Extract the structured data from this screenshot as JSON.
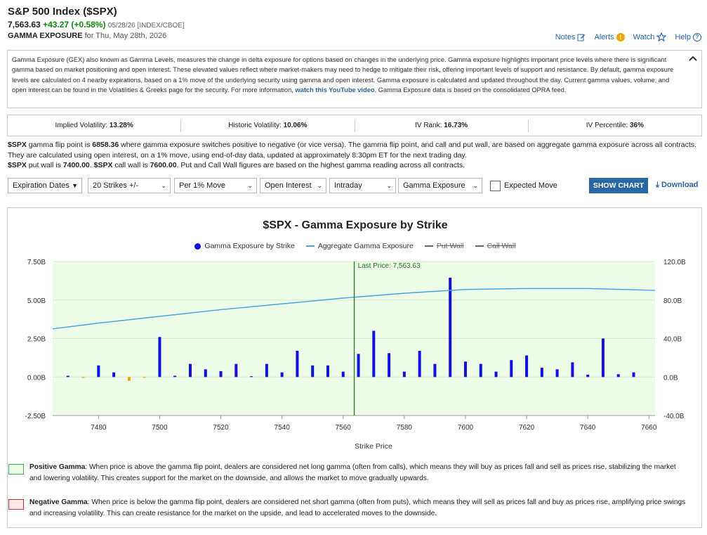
{
  "header": {
    "title": "S&P 500 Index ($SPX)",
    "price": "7,563.63",
    "change": "+43.27 (+0.58%)",
    "meta": "05/28/26 [INDEX/CBOE]",
    "sub_bold": "GAMMA EXPOSURE",
    "sub_rest": " for Thu, May 28th, 2026"
  },
  "toplinks": {
    "notes": "Notes",
    "alerts": "Alerts",
    "alerts_badge": "!",
    "watch": "Watch",
    "help": "Help",
    "help_icon": "?"
  },
  "icons": {
    "notes": "pencil-icon",
    "watch": "star-icon",
    "help": "question-icon",
    "collapse": "chevron-up-icon",
    "download": "download-icon"
  },
  "description": {
    "text1": "Gamma Exposure (GEX) also known as Gamma Levels, measures the change in delta exposure for options based on changes in the underlying price. Gamma exposure highlights important price levels where there is significant gamma based on market positioning and open interest. These elevated values reflect where market-makers may need to hedge to mitigate their risk, offering important levels of support and resistance. By default, gamma exposure levels are calculated on 4 nearby expirations, based on a 1% move of the underlying security using gamma and open interest. Gamma exposure is calculated and updated throughout the day. Current gamma values, volume, and open interest can be found in the Volatilities & Greeks page for the security. For more information, ",
    "link": "watch this YouTube video",
    "text2": ". Gamma Exposure data is based on the consolidated OPRA feed."
  },
  "stats": [
    {
      "label": "Implied Volatility: ",
      "value": "13.28%"
    },
    {
      "label": "Historic Volatility: ",
      "value": "10.06%"
    },
    {
      "label": "IV Rank: ",
      "value": "16.73%"
    },
    {
      "label": "IV Percentile: ",
      "value": "36%"
    }
  ],
  "info": {
    "l1a": "$SPX",
    "l1b": " gamma flip point is ",
    "l1c": "6858.36",
    "l1d": " where gamma exposure switches positive to negative (or vice versa). The gamma flip point, and call and put wall, are based on aggregate gamma exposure across all contracts. They are calculated using open interest, on a 1% move, using end-of-day data, updated at approximately 8:30pm ET for the next trading day.",
    "l2a": "$SPX",
    "l2b": " put wall is ",
    "l2c": "7400.00",
    "l2d": ". ",
    "l2e": "$SPX",
    "l2f": " call wall is ",
    "l2g": "7600.00",
    "l2h": ". Put and Call Wall figures are based on the highest gamma reading across all contracts."
  },
  "controls": {
    "expiration": "Expiration Dates",
    "strikes": "20 Strikes +/-",
    "move": "Per 1% Move",
    "oi": "Open Interest",
    "period": "Intraday",
    "metric": "Gamma Exposure",
    "expected_move": "Expected Move",
    "show_chart": "SHOW CHART",
    "download": "Download"
  },
  "chart_data": {
    "type": "bar",
    "title": "$SPX - Gamma Exposure by Strike",
    "xlabel": "Strike Price",
    "legend": [
      "Gamma Exposure by Strike",
      "Aggregate Gamma Exposure",
      "Put Wall",
      "Call Wall"
    ],
    "last_price_label": "Last Price: 7,563.63",
    "last_price": 7563.63,
    "xlim": [
      7465,
      7662
    ],
    "ylim_left": [
      -2.5,
      7.5
    ],
    "ylim_right": [
      -40,
      120
    ],
    "x_ticks": [
      7480,
      7500,
      7520,
      7540,
      7560,
      7580,
      7600,
      7620,
      7640,
      7660
    ],
    "y_left_ticks": [
      "-2.50B",
      "0.00B",
      "2.50B",
      "5.00B",
      "7.50B"
    ],
    "y_right_ticks": [
      "-40.0B",
      "0.0B",
      "40.0B",
      "80.0B",
      "120.0B"
    ],
    "bars": {
      "strikes": [
        7470,
        7475,
        7480,
        7485,
        7490,
        7495,
        7500,
        7505,
        7510,
        7515,
        7520,
        7525,
        7530,
        7535,
        7540,
        7545,
        7550,
        7555,
        7560,
        7565,
        7570,
        7575,
        7580,
        7585,
        7590,
        7595,
        7600,
        7605,
        7610,
        7615,
        7620,
        7625,
        7630,
        7635,
        7640,
        7645,
        7650,
        7655,
        7660
      ],
      "values": [
        0.08,
        -0.05,
        0.75,
        0.3,
        -0.25,
        -0.05,
        2.6,
        0.08,
        0.85,
        0.5,
        0.38,
        0.85,
        0.05,
        0.85,
        0.3,
        1.7,
        0.75,
        0.75,
        0.35,
        1.5,
        3.0,
        1.55,
        0.35,
        1.7,
        0.85,
        6.45,
        1.0,
        0.85,
        0.35,
        1.1,
        1.4,
        0.6,
        0.5,
        0.95,
        0.15,
        2.5,
        0.18,
        0.3,
        0.0
      ]
    },
    "aggregate": {
      "x": [
        7465,
        7480,
        7500,
        7520,
        7540,
        7560,
        7580,
        7600,
        7620,
        7640,
        7662
      ],
      "y": [
        50,
        56,
        63,
        70,
        76,
        82,
        87,
        91,
        92,
        92,
        90
      ]
    }
  },
  "notes": {
    "pos_label": "Positive Gamma",
    "pos_text": ": When price is above the gamma flip point, dealers are considered net long gamma (often from calls), which means they will buy as prices fall and sell as prices rise, stabilizing the market and lowering volatility. This creates support for the market on the downside, and allows the market to move gradually upwards.",
    "neg_label": "Negative Gamma",
    "neg_text": ": When price is below the gamma flip point, dealers are considered net short gamma (often from puts), which means they will sell as prices fall and buy as prices rise, amplifying price swings and increasing volatility. This can create resistance for the market on the upside, and lead to accelerated moves to the downside."
  },
  "colors": {
    "positive": "#1010e0",
    "negative": "#f0a500",
    "aggregate": "#4aa3e8",
    "last_price": "#1a7a1a",
    "pos_bg": "#eefbe8",
    "neg_bg": "#fde8e8"
  }
}
